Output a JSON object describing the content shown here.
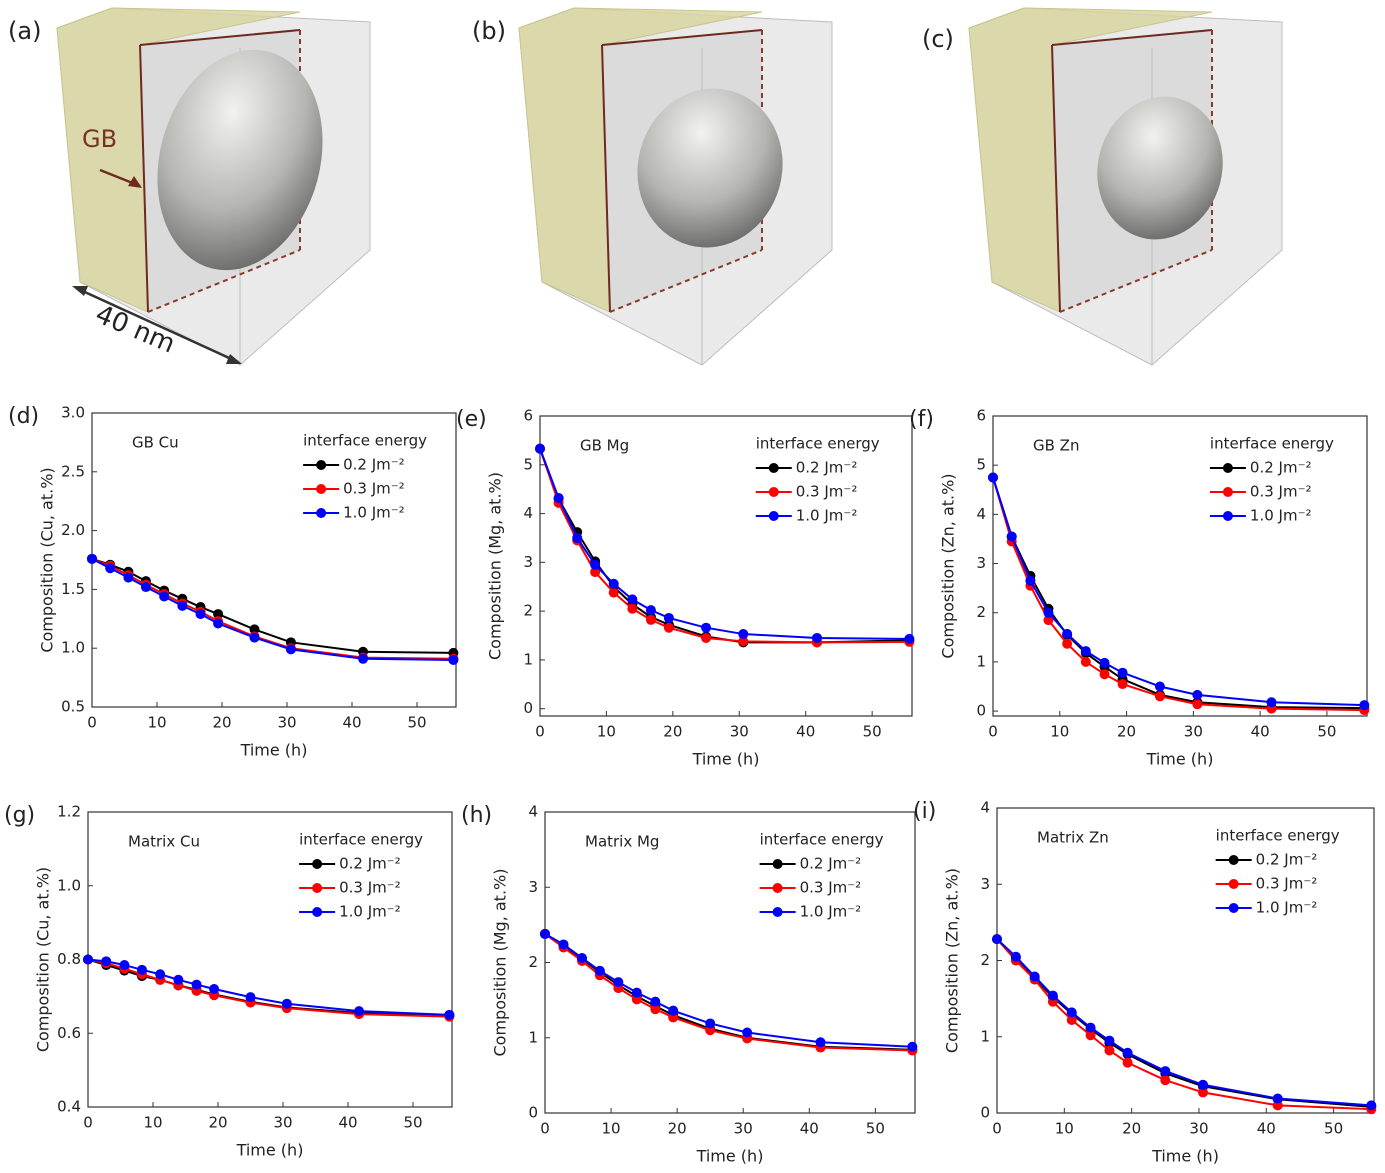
{
  "panels": [
    {
      "label": "(a)"
    },
    {
      "label": "(b)"
    },
    {
      "label": "(c)"
    }
  ],
  "annotations": {
    "gb": "GB",
    "scale": "40 nm"
  },
  "chart_data": [
    {
      "type": "line",
      "panel_label": "(d)",
      "annotation": "GB Cu",
      "ylabel": "Composition (Cu, at.%)",
      "xlabel": "Time (h)",
      "legend_title": "interface energy",
      "x": [
        0,
        2.8,
        5.6,
        8.3,
        11.1,
        13.9,
        16.7,
        19.4,
        25,
        30.6,
        41.7,
        55.6
      ],
      "xlim": [
        0,
        56
      ],
      "xticks": [
        0,
        10,
        20,
        30,
        40,
        50
      ],
      "ylim": [
        0.5,
        3.0
      ],
      "yticks": [
        0.5,
        {
          "value": 1,
          "label": "1.0"
        },
        1.5,
        {
          "value": 2,
          "label": "2.0"
        },
        2.5,
        {
          "value": 3,
          "label": "3.0"
        }
      ],
      "series": [
        {
          "name": "0.2 Jm⁻²",
          "color": "#000000",
          "values": [
            1.76,
            1.71,
            1.65,
            1.57,
            1.49,
            1.42,
            1.35,
            1.29,
            1.16,
            1.05,
            0.97,
            0.96
          ]
        },
        {
          "name": "0.3 Jm⁻²",
          "color": "#ff0000",
          "values": [
            1.76,
            1.7,
            1.62,
            1.54,
            1.46,
            1.38,
            1.31,
            1.23,
            1.1,
            1.0,
            0.92,
            0.91
          ]
        },
        {
          "name": "1.0 Jm⁻²",
          "color": "#0000ff",
          "values": [
            1.76,
            1.68,
            1.6,
            1.52,
            1.44,
            1.36,
            1.29,
            1.21,
            1.09,
            0.99,
            0.91,
            0.9
          ]
        }
      ]
    },
    {
      "type": "line",
      "panel_label": "(e)",
      "annotation": "GB Mg",
      "ylabel": "Composition (Mg, at.%)",
      "xlabel": "Time (h)",
      "legend_title": "interface energy",
      "x": [
        0,
        2.8,
        5.6,
        8.3,
        11.1,
        13.9,
        16.7,
        19.4,
        25,
        30.6,
        41.7,
        55.6
      ],
      "xlim": [
        0,
        56
      ],
      "xticks": [
        0,
        10,
        20,
        30,
        40,
        50
      ],
      "ylim": [
        -0.15,
        6
      ],
      "yticks": [
        0,
        1,
        2,
        3,
        4,
        5,
        6
      ],
      "series": [
        {
          "name": "0.2 Jm⁻²",
          "color": "#000000",
          "values": [
            5.33,
            4.3,
            3.62,
            3.02,
            2.5,
            2.14,
            1.88,
            1.72,
            1.48,
            1.36,
            1.36,
            1.4
          ]
        },
        {
          "name": "0.3 Jm⁻²",
          "color": "#ff0000",
          "values": [
            5.33,
            4.22,
            3.45,
            2.8,
            2.38,
            2.05,
            1.82,
            1.66,
            1.45,
            1.38,
            1.36,
            1.37
          ]
        },
        {
          "name": "1.0 Jm⁻²",
          "color": "#0000ff",
          "values": [
            5.33,
            4.32,
            3.5,
            2.95,
            2.56,
            2.24,
            2.02,
            1.86,
            1.66,
            1.53,
            1.45,
            1.43
          ]
        }
      ]
    },
    {
      "type": "line",
      "panel_label": "(f)",
      "annotation": "GB Zn",
      "ylabel": "Composition (Zn, at.%)",
      "xlabel": "Time (h)",
      "legend_title": "interface energy",
      "x": [
        0,
        2.8,
        5.6,
        8.3,
        11.1,
        13.9,
        16.7,
        19.4,
        25,
        30.6,
        41.7,
        55.6
      ],
      "xlim": [
        0,
        56
      ],
      "xticks": [
        0,
        10,
        20,
        30,
        40,
        50
      ],
      "ylim": [
        -0.1,
        6
      ],
      "yticks": [
        0,
        1,
        2,
        3,
        4,
        5,
        6
      ],
      "series": [
        {
          "name": "0.2 Jm⁻²",
          "color": "#000000",
          "values": [
            4.75,
            3.55,
            2.75,
            2.08,
            1.55,
            1.18,
            0.9,
            0.65,
            0.33,
            0.18,
            0.08,
            0.06
          ]
        },
        {
          "name": "0.3 Jm⁻²",
          "color": "#ff0000",
          "values": [
            4.75,
            3.45,
            2.55,
            1.85,
            1.37,
            1.0,
            0.75,
            0.55,
            0.3,
            0.14,
            0.05,
            0.02
          ]
        },
        {
          "name": "1.0 Jm⁻²",
          "color": "#0000ff",
          "values": [
            4.75,
            3.55,
            2.65,
            2.0,
            1.57,
            1.22,
            0.98,
            0.78,
            0.5,
            0.33,
            0.18,
            0.12
          ]
        }
      ]
    },
    {
      "type": "line",
      "panel_label": "(g)",
      "annotation": "Matrix Cu",
      "ylabel": "Composition (Cu, at.%)",
      "xlabel": "Time (h)",
      "legend_title": "interface energy",
      "x": [
        0,
        2.8,
        5.6,
        8.3,
        11.1,
        13.9,
        16.7,
        19.4,
        25,
        30.6,
        41.7,
        55.6
      ],
      "xlim": [
        0,
        56
      ],
      "xticks": [
        0,
        10,
        20,
        30,
        40,
        50
      ],
      "ylim": [
        0.4,
        1.2
      ],
      "yticks": [
        0.4,
        0.6,
        0.8,
        {
          "value": 1,
          "label": "1.0"
        },
        1.2
      ],
      "series": [
        {
          "name": "0.2 Jm⁻²",
          "color": "#000000",
          "values": [
            0.8,
            0.785,
            0.77,
            0.755,
            0.745,
            0.73,
            0.718,
            0.705,
            0.685,
            0.67,
            0.655,
            0.648
          ]
        },
        {
          "name": "0.3 Jm⁻²",
          "color": "#ff0000",
          "values": [
            0.8,
            0.79,
            0.775,
            0.76,
            0.745,
            0.73,
            0.715,
            0.703,
            0.683,
            0.668,
            0.652,
            0.645
          ]
        },
        {
          "name": "1.0 Jm⁻²",
          "color": "#0000ff",
          "values": [
            0.8,
            0.795,
            0.785,
            0.772,
            0.76,
            0.745,
            0.732,
            0.72,
            0.698,
            0.68,
            0.66,
            0.65
          ]
        }
      ]
    },
    {
      "type": "line",
      "panel_label": "(h)",
      "annotation": "Matrix Mg",
      "ylabel": "Composition (Mg, at.%)",
      "xlabel": "Time (h)",
      "legend_title": "interface energy",
      "x": [
        0,
        2.8,
        5.6,
        8.3,
        11.1,
        13.9,
        16.7,
        19.4,
        25,
        30.6,
        41.7,
        55.6
      ],
      "xlim": [
        0,
        56
      ],
      "xticks": [
        0,
        10,
        20,
        30,
        40,
        50
      ],
      "ylim": [
        0,
        4
      ],
      "yticks": [
        0,
        1,
        2,
        3,
        4
      ],
      "series": [
        {
          "name": "0.2 Jm⁻²",
          "color": "#000000",
          "values": [
            2.38,
            2.22,
            2.05,
            1.87,
            1.7,
            1.55,
            1.42,
            1.3,
            1.12,
            1.0,
            0.88,
            0.84
          ]
        },
        {
          "name": "0.3 Jm⁻²",
          "color": "#ff0000",
          "values": [
            2.38,
            2.2,
            2.02,
            1.83,
            1.66,
            1.51,
            1.38,
            1.27,
            1.1,
            0.99,
            0.87,
            0.83
          ]
        },
        {
          "name": "1.0 Jm⁻²",
          "color": "#0000ff",
          "values": [
            2.38,
            2.24,
            2.06,
            1.89,
            1.74,
            1.6,
            1.48,
            1.36,
            1.19,
            1.07,
            0.94,
            0.88
          ]
        }
      ]
    },
    {
      "type": "line",
      "panel_label": "(i)",
      "annotation": "Matrix Zn",
      "ylabel": "Composition (Zn, at.%)",
      "xlabel": "Time (h)",
      "legend_title": "interface energy",
      "x": [
        0,
        2.8,
        5.6,
        8.3,
        11.1,
        13.9,
        16.7,
        19.4,
        25,
        30.6,
        41.7,
        55.6
      ],
      "xlim": [
        0,
        56
      ],
      "xticks": [
        0,
        10,
        20,
        30,
        40,
        50
      ],
      "ylim": [
        0,
        4
      ],
      "yticks": [
        0,
        1,
        2,
        3,
        4
      ],
      "series": [
        {
          "name": "0.2 Jm⁻²",
          "color": "#000000",
          "values": [
            2.28,
            2.04,
            1.77,
            1.52,
            1.3,
            1.1,
            0.92,
            0.77,
            0.52,
            0.35,
            0.18,
            0.08
          ]
        },
        {
          "name": "0.3 Jm⁻²",
          "color": "#ff0000",
          "values": [
            2.28,
            2.0,
            1.75,
            1.46,
            1.22,
            1.02,
            0.82,
            0.66,
            0.43,
            0.27,
            0.1,
            0.05
          ]
        },
        {
          "name": "1.0 Jm⁻²",
          "color": "#0000ff",
          "values": [
            2.28,
            2.05,
            1.79,
            1.54,
            1.32,
            1.12,
            0.95,
            0.79,
            0.55,
            0.37,
            0.19,
            0.1
          ]
        }
      ]
    }
  ]
}
